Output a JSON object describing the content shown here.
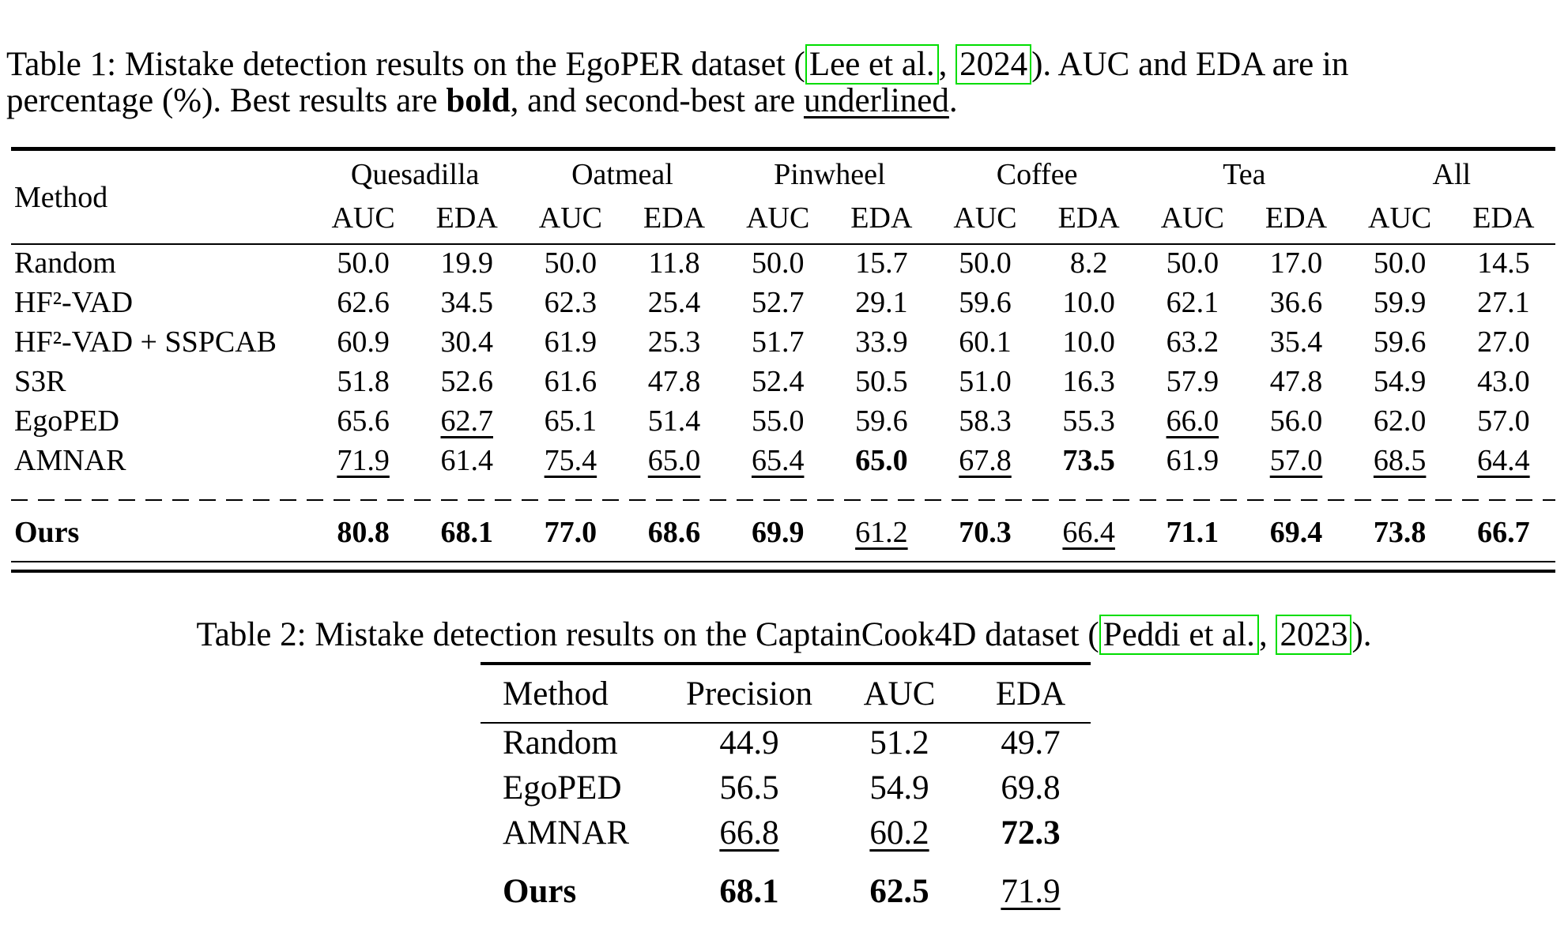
{
  "page": {
    "background": "#ffffff",
    "text_color": "#000000",
    "citation_box_color": "#00dd00"
  },
  "table1": {
    "caption": {
      "part1": "Table 1: Mistake detection results on the EgoPER dataset (",
      "link_authors": "Lee et al.",
      "comma": ", ",
      "link_year": "2024",
      "part2": ").  AUC and EDA are in",
      "line2_part1": "percentage (%). Best results are ",
      "bold_word": "bold",
      "line2_part2": ", and second-best are ",
      "underlined_word": "underlined",
      "line2_part3": "."
    },
    "method_header": "Method",
    "groups": [
      "Quesadilla",
      "Oatmeal",
      "Pinwheel",
      "Coffee",
      "Tea",
      "All"
    ],
    "metric_headers": [
      "AUC",
      "EDA"
    ],
    "rows": [
      {
        "method": "Random",
        "bold_method": false,
        "dashed_before": false,
        "cells": [
          [
            "50.0",
            "p"
          ],
          [
            "19.9",
            "p"
          ],
          [
            "50.0",
            "p"
          ],
          [
            "11.8",
            "p"
          ],
          [
            "50.0",
            "p"
          ],
          [
            "15.7",
            "p"
          ],
          [
            "50.0",
            "p"
          ],
          [
            "8.2",
            "p"
          ],
          [
            "50.0",
            "p"
          ],
          [
            "17.0",
            "p"
          ],
          [
            "50.0",
            "p"
          ],
          [
            "14.5",
            "p"
          ]
        ]
      },
      {
        "method": "HF²-VAD",
        "bold_method": false,
        "dashed_before": false,
        "cells": [
          [
            "62.6",
            "p"
          ],
          [
            "34.5",
            "p"
          ],
          [
            "62.3",
            "p"
          ],
          [
            "25.4",
            "p"
          ],
          [
            "52.7",
            "p"
          ],
          [
            "29.1",
            "p"
          ],
          [
            "59.6",
            "p"
          ],
          [
            "10.0",
            "p"
          ],
          [
            "62.1",
            "p"
          ],
          [
            "36.6",
            "p"
          ],
          [
            "59.9",
            "p"
          ],
          [
            "27.1",
            "p"
          ]
        ]
      },
      {
        "method": "HF²-VAD + SSPCAB",
        "bold_method": false,
        "dashed_before": false,
        "cells": [
          [
            "60.9",
            "p"
          ],
          [
            "30.4",
            "p"
          ],
          [
            "61.9",
            "p"
          ],
          [
            "25.3",
            "p"
          ],
          [
            "51.7",
            "p"
          ],
          [
            "33.9",
            "p"
          ],
          [
            "60.1",
            "p"
          ],
          [
            "10.0",
            "p"
          ],
          [
            "63.2",
            "p"
          ],
          [
            "35.4",
            "p"
          ],
          [
            "59.6",
            "p"
          ],
          [
            "27.0",
            "p"
          ]
        ]
      },
      {
        "method": "S3R",
        "bold_method": false,
        "dashed_before": false,
        "cells": [
          [
            "51.8",
            "p"
          ],
          [
            "52.6",
            "p"
          ],
          [
            "61.6",
            "p"
          ],
          [
            "47.8",
            "p"
          ],
          [
            "52.4",
            "p"
          ],
          [
            "50.5",
            "p"
          ],
          [
            "51.0",
            "p"
          ],
          [
            "16.3",
            "p"
          ],
          [
            "57.9",
            "p"
          ],
          [
            "47.8",
            "p"
          ],
          [
            "54.9",
            "p"
          ],
          [
            "43.0",
            "p"
          ]
        ]
      },
      {
        "method": "EgoPED",
        "bold_method": false,
        "dashed_before": false,
        "cells": [
          [
            "65.6",
            "p"
          ],
          [
            "62.7",
            "u"
          ],
          [
            "65.1",
            "p"
          ],
          [
            "51.4",
            "p"
          ],
          [
            "55.0",
            "p"
          ],
          [
            "59.6",
            "p"
          ],
          [
            "58.3",
            "p"
          ],
          [
            "55.3",
            "p"
          ],
          [
            "66.0",
            "u"
          ],
          [
            "56.0",
            "p"
          ],
          [
            "62.0",
            "p"
          ],
          [
            "57.0",
            "p"
          ]
        ]
      },
      {
        "method": "AMNAR",
        "bold_method": false,
        "dashed_before": false,
        "cells": [
          [
            "71.9",
            "u"
          ],
          [
            "61.4",
            "p"
          ],
          [
            "75.4",
            "u"
          ],
          [
            "65.0",
            "u"
          ],
          [
            "65.4",
            "u"
          ],
          [
            "65.0",
            "b"
          ],
          [
            "67.8",
            "u"
          ],
          [
            "73.5",
            "b"
          ],
          [
            "61.9",
            "p"
          ],
          [
            "57.0",
            "u"
          ],
          [
            "68.5",
            "u"
          ],
          [
            "64.4",
            "u"
          ]
        ]
      },
      {
        "method": "Ours",
        "bold_method": true,
        "dashed_before": true,
        "cells": [
          [
            "80.8",
            "b"
          ],
          [
            "68.1",
            "b"
          ],
          [
            "77.0",
            "b"
          ],
          [
            "68.6",
            "b"
          ],
          [
            "69.9",
            "b"
          ],
          [
            "61.2",
            "u"
          ],
          [
            "70.3",
            "b"
          ],
          [
            "66.4",
            "u"
          ],
          [
            "71.1",
            "b"
          ],
          [
            "69.4",
            "b"
          ],
          [
            "73.8",
            "b"
          ],
          [
            "66.7",
            "b"
          ]
        ]
      }
    ]
  },
  "table2": {
    "caption": {
      "part1": "Table 2: Mistake detection results on the CaptainCook4D dataset (",
      "link_authors": "Peddi et al.",
      "comma": ", ",
      "link_year": "2023",
      "part2": ")."
    },
    "headers": [
      "Method",
      "Precision",
      "AUC",
      "EDA"
    ],
    "rows": [
      {
        "method": "Random",
        "bold_method": false,
        "cells": [
          [
            "44.9",
            "p"
          ],
          [
            "51.2",
            "p"
          ],
          [
            "49.7",
            "p"
          ]
        ]
      },
      {
        "method": "EgoPED",
        "bold_method": false,
        "cells": [
          [
            "56.5",
            "p"
          ],
          [
            "54.9",
            "p"
          ],
          [
            "69.8",
            "p"
          ]
        ]
      },
      {
        "method": "AMNAR",
        "bold_method": false,
        "cells": [
          [
            "66.8",
            "u"
          ],
          [
            "60.2",
            "u"
          ],
          [
            "72.3",
            "b"
          ]
        ]
      },
      {
        "method": "Ours",
        "bold_method": true,
        "cells": [
          [
            "68.1",
            "b"
          ],
          [
            "62.5",
            "b"
          ],
          [
            "71.9",
            "u"
          ]
        ]
      }
    ]
  }
}
